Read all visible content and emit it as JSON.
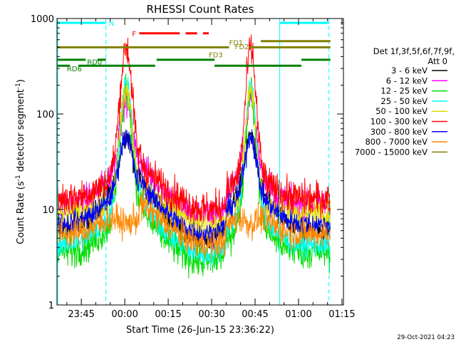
{
  "chart_data": {
    "type": "line",
    "title": "RHESSI Count Rates",
    "xlabel": "Start Time (26-Jun-15 23:36:22)",
    "ylabel": "Count Rate (s⁻¹ detector segment⁻¹)",
    "ylabel_main": "Count Rate (s",
    "ylabel_mid": " detector segment",
    "ylabel_end": ")",
    "ylabel_sup": "-1",
    "yscale": "log",
    "ylim": [
      1,
      1000
    ],
    "xlim_min": [
      -23.4,
      75.5
    ],
    "y_ticks": [
      {
        "v": 1,
        "label": "1"
      },
      {
        "v": 10,
        "label": "10"
      },
      {
        "v": 100,
        "label": "100"
      },
      {
        "v": 1000,
        "label": "1000"
      }
    ],
    "x_ticks": [
      {
        "m": -15,
        "label": "23:45"
      },
      {
        "m": 0,
        "label": "00:00"
      },
      {
        "m": 15,
        "label": "00:15"
      },
      {
        "m": 30,
        "label": "00:30"
      },
      {
        "m": 45,
        "label": "00:45"
      },
      {
        "m": 60,
        "label": "01:00"
      },
      {
        "m": 75,
        "label": "01:15"
      }
    ],
    "legend": {
      "header1": "Det 1f,3f,5f,6f,7f,9f,",
      "header2": "Att 0",
      "placement": "right"
    },
    "series": [
      {
        "name": "3 - 6 keV",
        "color": "#000000",
        "base": 6.0,
        "peak": 60,
        "hump": 18
      },
      {
        "name": "6 - 12 keV",
        "color": "#ff00ff",
        "base": 11.0,
        "peak": 140,
        "hump": 25
      },
      {
        "name": "12 - 25 keV",
        "color": "#00dd00",
        "base": 3.6,
        "peak": 180,
        "hump": 8
      },
      {
        "name": "25 - 50 keV",
        "color": "#00ffff",
        "base": 4.2,
        "peak": 215,
        "hump": 10
      },
      {
        "name": "50 - 100 keV",
        "color": "#dddd00",
        "base": 9.0,
        "peak": 175,
        "hump": 12
      },
      {
        "name": "100 - 300 keV",
        "color": "#ff0000",
        "base": 13.0,
        "peak": 500,
        "hump": 22
      },
      {
        "name": "300 - 800 keV",
        "color": "#0000ff",
        "base": 7.0,
        "peak": 60,
        "hump": 15
      },
      {
        "name": "800 - 7000 keV",
        "color": "#ff8800",
        "base": 5.5,
        "peak": 7,
        "hump": 9
      },
      {
        "name": "7000 - 15000 keV",
        "color": "#808000",
        "base": 500,
        "peak": 500,
        "hump": 500
      }
    ],
    "flares_center_min": [
      0.5,
      43.5
    ],
    "vlines": [
      {
        "m": -23.2,
        "style": "solid"
      },
      {
        "m": -6.5,
        "style": "dashed"
      },
      {
        "m": 53.5,
        "style": "solid"
      },
      {
        "m": 70.5,
        "style": "dashed"
      }
    ],
    "annotations": [
      {
        "text": "N",
        "color": "#00ffff",
        "m": -5.5,
        "v": 900
      },
      {
        "text": "F",
        "color": "#ff0000",
        "m": 2.5,
        "v": 700
      },
      {
        "text": "FD1",
        "color": "#808000",
        "m": 36.0,
        "v": 560
      },
      {
        "text": "FD2",
        "color": "#808000",
        "m": 38.0,
        "v": 510
      },
      {
        "text": "FD3",
        "color": "#808000",
        "m": 29.0,
        "v": 420
      },
      {
        "text": "RD0",
        "color": "#008000",
        "m": -13.0,
        "v": 355
      },
      {
        "text": "RD6",
        "color": "#008000",
        "m": -20.0,
        "v": 300
      }
    ],
    "status_bars": [
      {
        "color": "#00ffff",
        "v": 900,
        "segs": [
          [
            -23.2,
            -6.5
          ],
          [
            53.5,
            70.5
          ]
        ]
      },
      {
        "color": "#ff0000",
        "v": 700,
        "segs": [
          [
            5.0,
            19.0
          ],
          [
            21.0,
            25.0
          ],
          [
            27.0,
            29.0
          ]
        ]
      },
      {
        "color": "#808000",
        "v": 580,
        "segs": [
          [
            47.0,
            71.0
          ]
        ]
      },
      {
        "color": "#808000",
        "v": 500,
        "segs": [
          [
            -23.2,
            36.0
          ],
          [
            43.0,
            71.0
          ]
        ]
      },
      {
        "color": "#008000",
        "v": 370,
        "segs": [
          [
            -23.2,
            -13.5
          ],
          [
            -9.5,
            -6.5
          ],
          [
            11.0,
            31.0
          ],
          [
            61.0,
            71.0
          ]
        ]
      },
      {
        "color": "#008000",
        "v": 320,
        "segs": [
          [
            -23.2,
            -19.0
          ],
          [
            -16.0,
            10.5
          ],
          [
            31.0,
            61.0
          ]
        ]
      }
    ],
    "grid": false
  },
  "footer": {
    "timestamp": "29-Oct-2021 04:23"
  }
}
